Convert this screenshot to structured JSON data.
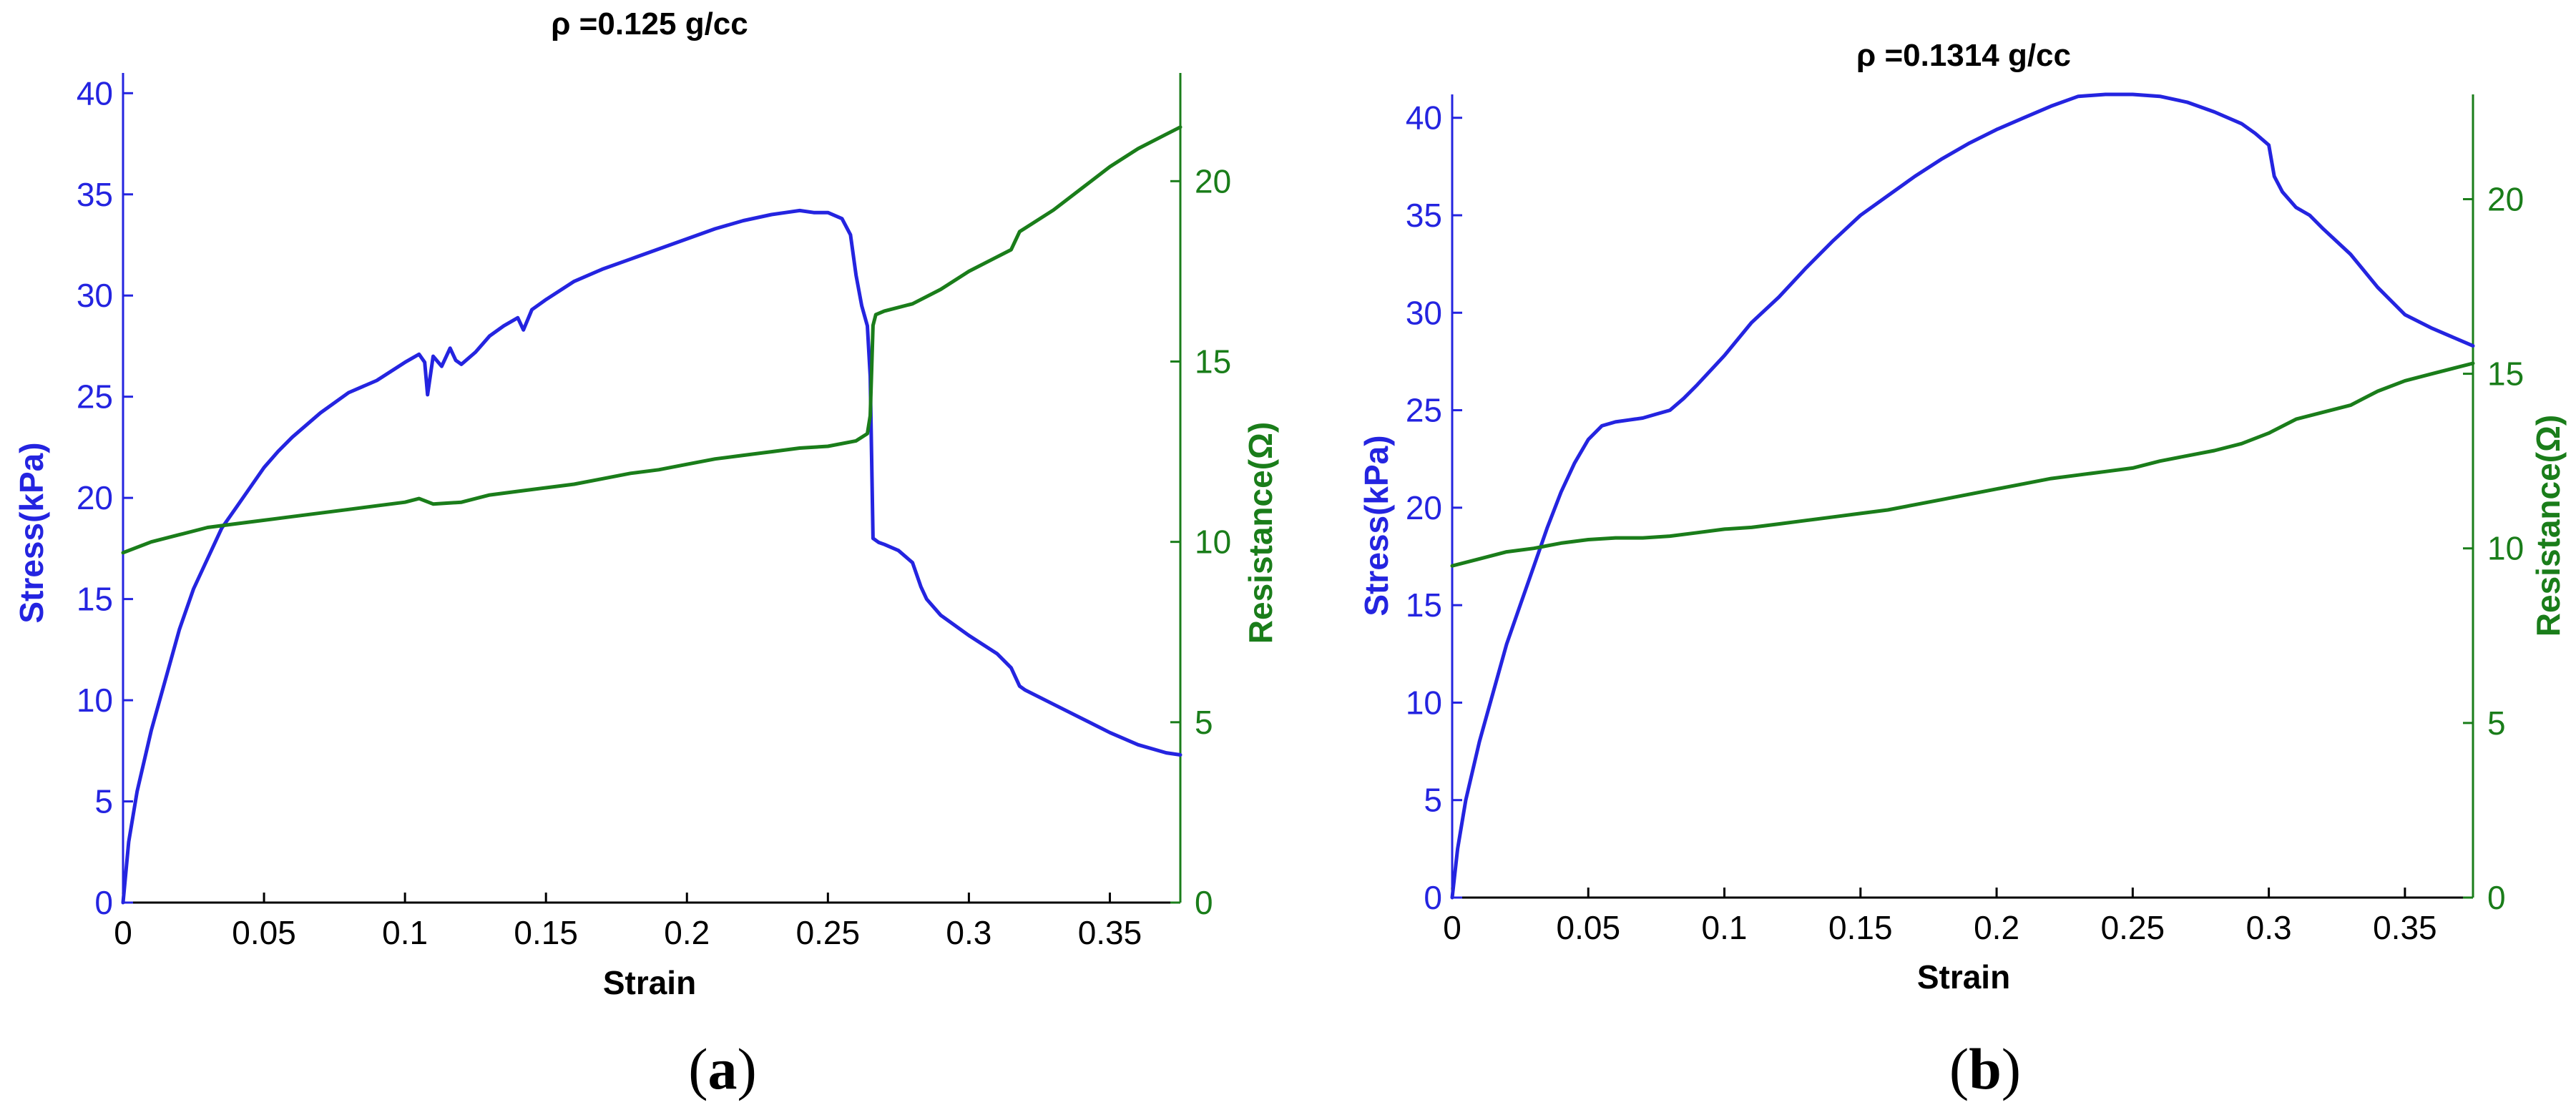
{
  "colors": {
    "stress": "#2424e0",
    "resistance": "#1a7d1a",
    "axis": "#000000"
  },
  "chart_data": [
    {
      "type": "line",
      "panel_label": "(a)",
      "panel_letter": "a",
      "title": "ρ =0.125 g/cc",
      "xlabel": "Strain",
      "ylabel_left": "Stress(kPa)",
      "ylabel_right": "Resistance(Ω)",
      "xlim": [
        0,
        0.375
      ],
      "ylim_left": [
        0,
        41
      ],
      "ylim_right": [
        0,
        23
      ],
      "x_ticks": [
        0,
        0.05,
        0.1,
        0.15,
        0.2,
        0.25,
        0.3,
        0.35
      ],
      "x_tick_labels": [
        "0",
        "0.05",
        "0.1",
        "0.15",
        "0.2",
        "0.25",
        "0.3",
        "0.35"
      ],
      "y_left_ticks": [
        0,
        5,
        10,
        15,
        20,
        25,
        30,
        35,
        40
      ],
      "y_left_tick_labels": [
        "0",
        "5",
        "10",
        "15",
        "20",
        "25",
        "30",
        "35",
        "40"
      ],
      "y_right_ticks": [
        0,
        5,
        10,
        15,
        20
      ],
      "y_right_tick_labels": [
        "0",
        "5",
        "10",
        "15",
        "20"
      ],
      "grid": false,
      "series": [
        {
          "axis": "left",
          "x": [
            0,
            0.002,
            0.005,
            0.01,
            0.015,
            0.02,
            0.025,
            0.03,
            0.035,
            0.04,
            0.045,
            0.05,
            0.055,
            0.06,
            0.07,
            0.08,
            0.09,
            0.1,
            0.105,
            0.107,
            0.108,
            0.11,
            0.113,
            0.116,
            0.118,
            0.12,
            0.125,
            0.13,
            0.135,
            0.14,
            0.142,
            0.145,
            0.15,
            0.16,
            0.17,
            0.18,
            0.19,
            0.2,
            0.21,
            0.22,
            0.23,
            0.235,
            0.24,
            0.245,
            0.25,
            0.255,
            0.258,
            0.26,
            0.262,
            0.264,
            0.265,
            0.266,
            0.268,
            0.27,
            0.275,
            0.28,
            0.283,
            0.285,
            0.29,
            0.3,
            0.31,
            0.315,
            0.318,
            0.32,
            0.33,
            0.34,
            0.35,
            0.36,
            0.37,
            0.375
          ],
          "y": [
            0,
            3,
            5.5,
            8.5,
            11,
            13.5,
            15.5,
            17,
            18.5,
            19.5,
            20.5,
            21.5,
            22.3,
            23,
            24.2,
            25.2,
            25.8,
            26.7,
            27.1,
            26.7,
            25.1,
            27,
            26.5,
            27.4,
            26.8,
            26.6,
            27.2,
            28,
            28.5,
            28.9,
            28.3,
            29.3,
            29.8,
            30.7,
            31.3,
            31.8,
            32.3,
            32.8,
            33.3,
            33.7,
            34,
            34.1,
            34.2,
            34.1,
            34.1,
            33.8,
            33,
            31,
            29.5,
            28.5,
            26,
            18,
            17.8,
            17.7,
            17.4,
            16.8,
            15.6,
            15,
            14.2,
            13.2,
            12.3,
            11.6,
            10.7,
            10.5,
            9.8,
            9.1,
            8.4,
            7.8,
            7.4,
            7.3
          ]
        },
        {
          "axis": "right",
          "x": [
            0,
            0.01,
            0.02,
            0.03,
            0.04,
            0.05,
            0.06,
            0.07,
            0.08,
            0.09,
            0.1,
            0.105,
            0.11,
            0.12,
            0.13,
            0.14,
            0.15,
            0.16,
            0.17,
            0.18,
            0.19,
            0.2,
            0.21,
            0.22,
            0.23,
            0.24,
            0.25,
            0.26,
            0.264,
            0.265,
            0.266,
            0.267,
            0.27,
            0.28,
            0.29,
            0.3,
            0.31,
            0.315,
            0.318,
            0.32,
            0.33,
            0.34,
            0.35,
            0.36,
            0.37,
            0.375
          ],
          "y": [
            9.7,
            10.0,
            10.2,
            10.4,
            10.5,
            10.6,
            10.7,
            10.8,
            10.9,
            11.0,
            11.1,
            11.2,
            11.05,
            11.1,
            11.3,
            11.4,
            11.5,
            11.6,
            11.75,
            11.9,
            12.0,
            12.15,
            12.3,
            12.4,
            12.5,
            12.6,
            12.65,
            12.8,
            13.0,
            13.5,
            16.0,
            16.3,
            16.4,
            16.6,
            17.0,
            17.5,
            17.9,
            18.1,
            18.6,
            18.7,
            19.2,
            19.8,
            20.4,
            20.9,
            21.3,
            21.5
          ]
        }
      ]
    },
    {
      "type": "line",
      "panel_label": "(b)",
      "panel_letter": "b",
      "title": "ρ =0.1314 g/cc",
      "xlabel": "Strain",
      "ylabel_left": "Stress(kPa)",
      "ylabel_right": "Resistance(Ω)",
      "xlim": [
        0,
        0.375
      ],
      "ylim_left": [
        0,
        41.2
      ],
      "ylim_right": [
        0,
        23
      ],
      "x_ticks": [
        0,
        0.05,
        0.1,
        0.15,
        0.2,
        0.25,
        0.3,
        0.35
      ],
      "x_tick_labels": [
        "0",
        "0.05",
        "0.1",
        "0.15",
        "0.2",
        "0.25",
        "0.3",
        "0.35"
      ],
      "y_left_ticks": [
        0,
        5,
        10,
        15,
        20,
        25,
        30,
        35,
        40
      ],
      "y_left_tick_labels": [
        "0",
        "5",
        "10",
        "15",
        "20",
        "25",
        "30",
        "35",
        "40"
      ],
      "y_right_ticks": [
        0,
        5,
        10,
        15,
        20
      ],
      "y_right_tick_labels": [
        "0",
        "5",
        "10",
        "15",
        "20"
      ],
      "grid": false,
      "series": [
        {
          "axis": "left",
          "x": [
            0,
            0.002,
            0.005,
            0.01,
            0.015,
            0.02,
            0.025,
            0.03,
            0.035,
            0.04,
            0.045,
            0.05,
            0.055,
            0.06,
            0.065,
            0.07,
            0.075,
            0.08,
            0.085,
            0.09,
            0.1,
            0.11,
            0.12,
            0.13,
            0.14,
            0.15,
            0.16,
            0.17,
            0.18,
            0.19,
            0.2,
            0.21,
            0.22,
            0.23,
            0.24,
            0.25,
            0.26,
            0.27,
            0.28,
            0.29,
            0.295,
            0.3,
            0.302,
            0.305,
            0.31,
            0.315,
            0.32,
            0.33,
            0.34,
            0.345,
            0.35,
            0.36,
            0.37,
            0.375
          ],
          "y": [
            0,
            2.5,
            5,
            8,
            10.5,
            13,
            15,
            17,
            19,
            20.8,
            22.3,
            23.5,
            24.2,
            24.4,
            24.5,
            24.6,
            24.8,
            25,
            25.6,
            26.3,
            27.8,
            29.5,
            30.8,
            32.3,
            33.7,
            35,
            36,
            37,
            37.9,
            38.7,
            39.4,
            40,
            40.6,
            41.1,
            41.2,
            41.2,
            41.1,
            40.8,
            40.3,
            39.7,
            39.2,
            38.6,
            37,
            36.2,
            35.4,
            35,
            34.3,
            33,
            31.3,
            30.6,
            29.9,
            29.2,
            28.6,
            28.3
          ]
        },
        {
          "axis": "right",
          "x": [
            0,
            0.01,
            0.02,
            0.03,
            0.04,
            0.05,
            0.06,
            0.07,
            0.08,
            0.09,
            0.1,
            0.11,
            0.12,
            0.13,
            0.14,
            0.15,
            0.16,
            0.17,
            0.18,
            0.19,
            0.2,
            0.21,
            0.22,
            0.23,
            0.24,
            0.25,
            0.26,
            0.27,
            0.28,
            0.29,
            0.3,
            0.31,
            0.32,
            0.33,
            0.34,
            0.35,
            0.36,
            0.37,
            0.375
          ],
          "y": [
            9.5,
            9.7,
            9.9,
            10.0,
            10.15,
            10.25,
            10.3,
            10.3,
            10.35,
            10.45,
            10.55,
            10.6,
            10.7,
            10.8,
            10.9,
            11.0,
            11.1,
            11.25,
            11.4,
            11.55,
            11.7,
            11.85,
            12.0,
            12.1,
            12.2,
            12.3,
            12.5,
            12.65,
            12.8,
            13.0,
            13.3,
            13.7,
            13.9,
            14.1,
            14.5,
            14.8,
            15.0,
            15.2,
            15.3
          ]
        }
      ]
    }
  ]
}
